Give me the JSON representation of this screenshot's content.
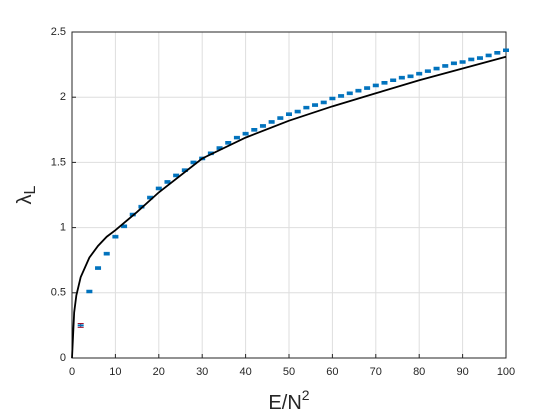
{
  "chart_data": {
    "type": "scatter",
    "xlabel": {
      "base": "E/N",
      "superscript": "2"
    },
    "ylabel": {
      "base": "λ",
      "subscript": "L"
    },
    "xlim": [
      0,
      100
    ],
    "xticks": [
      0,
      10,
      20,
      30,
      40,
      50,
      60,
      70,
      80,
      90,
      100
    ],
    "ylim": [
      0,
      2.5
    ],
    "yticks": [
      0,
      0.5,
      1,
      1.5,
      2,
      2.5
    ],
    "grid": true,
    "series": [
      {
        "mode": "errorbar",
        "color": "#0072bd",
        "error_color": "#a2142f",
        "x": [
          2,
          4,
          6,
          8,
          10,
          12,
          14,
          16,
          18,
          20,
          22,
          24,
          26,
          28,
          30,
          32,
          34,
          36,
          38,
          40,
          42,
          44,
          46,
          48,
          50,
          52,
          54,
          56,
          58,
          60,
          62,
          64,
          66,
          68,
          70,
          72,
          74,
          76,
          78,
          80,
          82,
          84,
          86,
          88,
          90,
          92,
          94,
          96,
          98,
          100
        ],
        "values": [
          0.25,
          0.51,
          0.69,
          0.8,
          0.93,
          1.01,
          1.1,
          1.16,
          1.23,
          1.3,
          1.35,
          1.4,
          1.44,
          1.5,
          1.53,
          1.57,
          1.61,
          1.65,
          1.69,
          1.72,
          1.75,
          1.78,
          1.81,
          1.84,
          1.87,
          1.89,
          1.92,
          1.94,
          1.96,
          1.99,
          2.01,
          2.03,
          2.05,
          2.07,
          2.09,
          2.11,
          2.13,
          2.15,
          2.16,
          2.18,
          2.2,
          2.22,
          2.24,
          2.26,
          2.27,
          2.29,
          2.3,
          2.32,
          2.34,
          2.36
        ],
        "errors": [
          0.015,
          0.01,
          0.01,
          0.01,
          0.01,
          0.01,
          0.01,
          0.01,
          0.01,
          0.01,
          0.01,
          0.01,
          0.01,
          0.01,
          0.01,
          0.01,
          0.01,
          0.01,
          0.01,
          0.01,
          0.01,
          0.01,
          0.01,
          0.01,
          0.01,
          0.01,
          0.01,
          0.01,
          0.01,
          0.01,
          0.01,
          0.01,
          0.01,
          0.01,
          0.01,
          0.01,
          0.01,
          0.01,
          0.01,
          0.01,
          0.01,
          0.01,
          0.01,
          0.01,
          0.01,
          0.01,
          0.01,
          0.01,
          0.01,
          0.01
        ]
      },
      {
        "mode": "line",
        "color": "#000000",
        "x": [
          0,
          0.5,
          1,
          2,
          4,
          6,
          8,
          10,
          15,
          20,
          30,
          40,
          50,
          60,
          70,
          80,
          90,
          100
        ],
        "values": [
          0,
          0.35,
          0.48,
          0.62,
          0.77,
          0.86,
          0.93,
          0.98,
          1.12,
          1.27,
          1.53,
          1.69,
          1.82,
          1.93,
          2.03,
          2.13,
          2.22,
          2.31
        ]
      }
    ]
  }
}
